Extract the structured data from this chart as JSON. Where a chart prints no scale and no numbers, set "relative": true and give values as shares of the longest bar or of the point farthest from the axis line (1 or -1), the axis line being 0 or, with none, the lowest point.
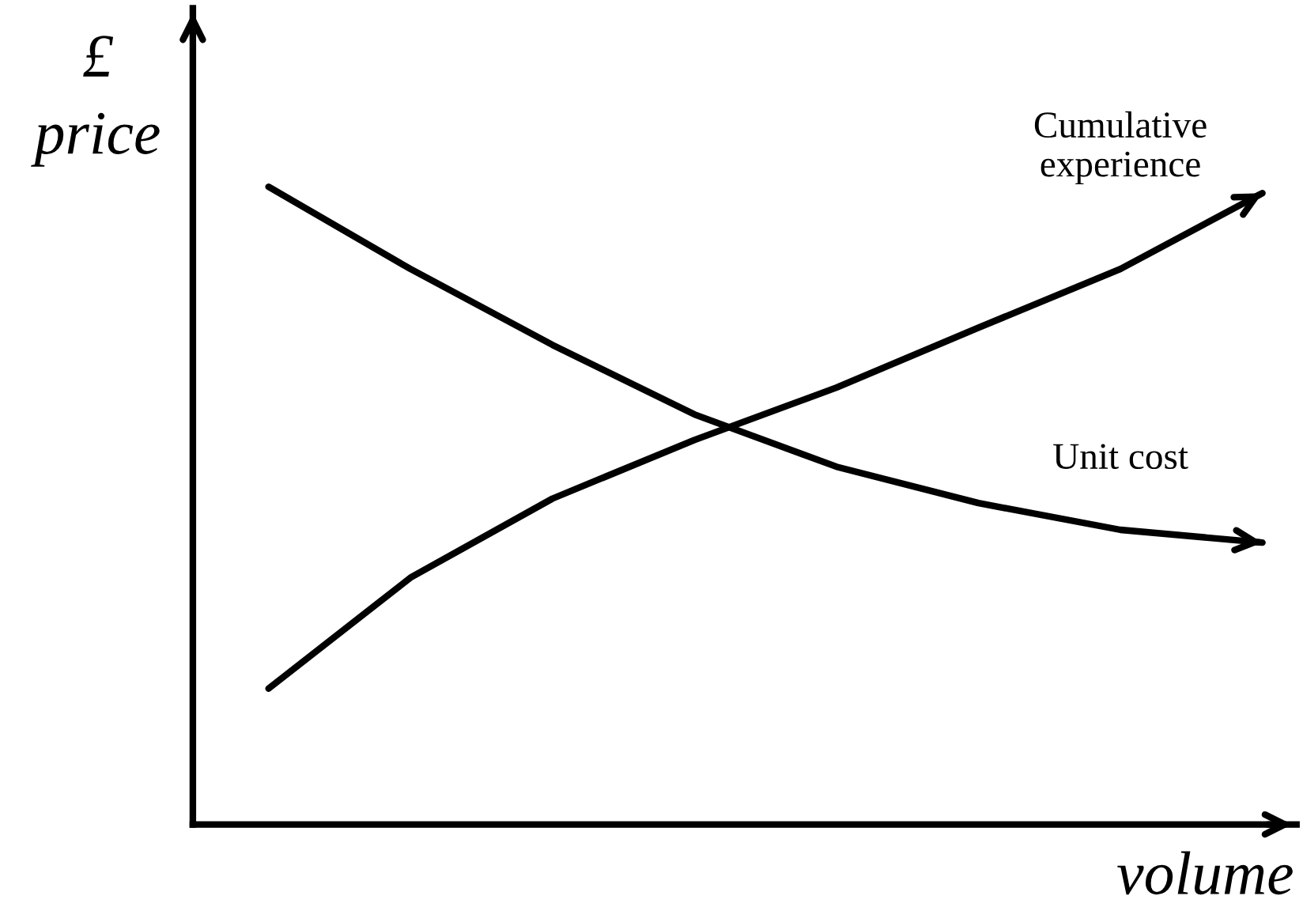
{
  "chart_data": {
    "type": "line",
    "relative": true,
    "xlabel": "volume",
    "ylabel": "£\nprice",
    "categories": [
      null,
      null,
      null,
      null,
      null,
      null,
      null,
      null
    ],
    "series": [
      {
        "name": "Unit cost",
        "color": "#000000",
        "values": [
          1,
          0.871,
          0.752,
          0.643,
          0.561,
          0.504,
          0.462,
          0.442
        ]
      },
      {
        "name": "Cumulative\nexperience",
        "color": "#000000",
        "values": [
          0.213,
          0.387,
          0.511,
          0.603,
          0.685,
          0.779,
          0.871,
          0.99
        ]
      }
    ],
    "legend": false,
    "tick_labels": false,
    "marker": "none",
    "line_style": "solid"
  }
}
